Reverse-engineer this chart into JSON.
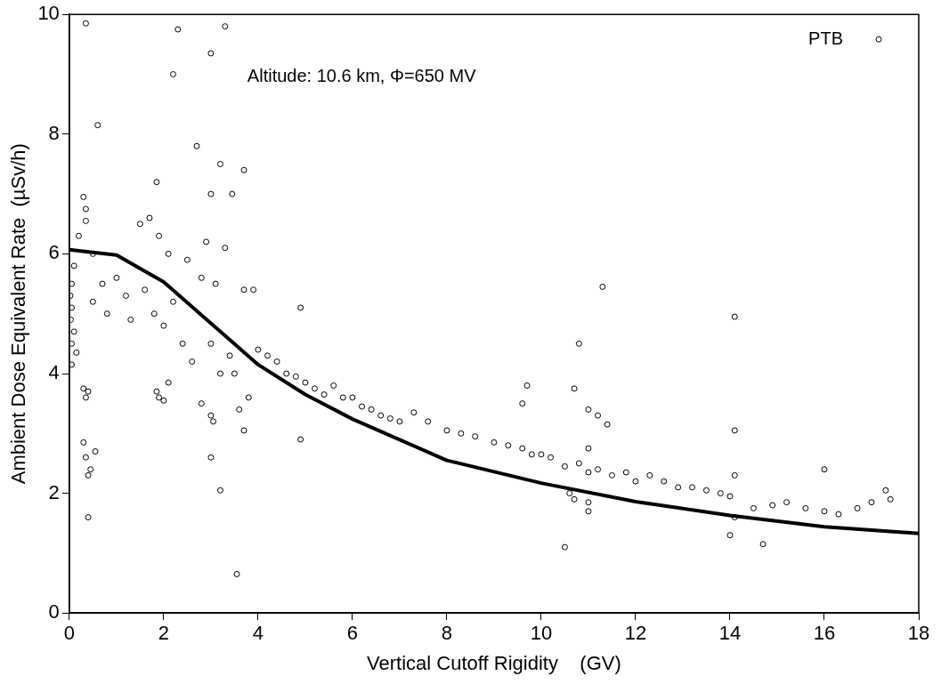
{
  "chart_data": {
    "type": "scatter",
    "xlabel": "Vertical Cutoff Rigidity    (GV)",
    "ylabel": "Ambient Dose Equivalent Rate  (µSv/h)",
    "annotations": [
      "Altitude: 10.6 km, Φ=650 MV"
    ],
    "xlim": [
      0,
      18
    ],
    "xticks": [
      0,
      2,
      4,
      6,
      8,
      10,
      12,
      14,
      16,
      18
    ],
    "ylim": [
      0,
      10
    ],
    "yticks": [
      0,
      2,
      4,
      6,
      8,
      10
    ],
    "grid": false,
    "legend": "top right",
    "series": [
      {
        "name": "PTB",
        "marker": "circle",
        "color": "#000000",
        "x": [
          0.35,
          0.6,
          2.2,
          2.3,
          3.3,
          3.0,
          2.7,
          3.0,
          3.2,
          3.7,
          3.45,
          1.85,
          0.3,
          0.35,
          0.35,
          0.2,
          0.5,
          0.1,
          0.05,
          0.02,
          0.05,
          0.03,
          0.1,
          0.05,
          0.15,
          0.05,
          0.3,
          0.35,
          0.4,
          0.3,
          0.35,
          0.45,
          0.4,
          0.55,
          0.4,
          3.55,
          3.2,
          3.0,
          4.9,
          4.9,
          11.3,
          14.1,
          14.1,
          10.8,
          10.7,
          10.5,
          14.7,
          16.0,
          0.5,
          0.7,
          0.8,
          1.0,
          1.2,
          1.3,
          1.5,
          1.6,
          1.7,
          1.8,
          1.9,
          2.0,
          2.1,
          2.2,
          2.4,
          2.5,
          2.6,
          2.8,
          2.9,
          3.0,
          3.1,
          3.2,
          3.3,
          3.4,
          3.6,
          3.7,
          3.8,
          3.9,
          1.85,
          1.9,
          2.0,
          2.1,
          2.8,
          3.0,
          3.05,
          3.5,
          3.7,
          4.0,
          4.2,
          4.4,
          4.6,
          4.8,
          5.0,
          5.2,
          5.4,
          5.6,
          5.8,
          6.0,
          6.2,
          6.4,
          6.6,
          6.8,
          7.0,
          7.3,
          7.6,
          8.0,
          8.3,
          8.6,
          9.0,
          9.3,
          9.6,
          9.8,
          10.0,
          10.2,
          10.5,
          10.6,
          10.7,
          10.8,
          11.0,
          11.0,
          11.2,
          11.5,
          11.8,
          12.0,
          12.3,
          12.6,
          12.9,
          13.2,
          13.5,
          13.8,
          14.0,
          14.0,
          14.1,
          14.1,
          14.5,
          14.9,
          15.2,
          15.6,
          16.0,
          16.3,
          16.7,
          17.0,
          17.3,
          17.4,
          9.6,
          9.7,
          11.2,
          11.4,
          11.0,
          11.0,
          11.0
        ],
        "values": [
          9.85,
          8.15,
          9.0,
          9.75,
          9.8,
          9.35,
          7.8,
          7.0,
          7.5,
          7.4,
          7.0,
          7.2,
          6.95,
          6.75,
          6.55,
          6.3,
          6.0,
          5.8,
          5.5,
          5.3,
          5.1,
          4.9,
          4.7,
          4.5,
          4.35,
          4.15,
          3.75,
          3.6,
          3.7,
          2.85,
          2.6,
          2.4,
          2.3,
          2.7,
          1.6,
          0.65,
          2.05,
          2.6,
          2.9,
          5.1,
          5.45,
          4.95,
          3.05,
          4.5,
          3.75,
          1.1,
          1.15,
          2.4,
          5.2,
          5.5,
          5.0,
          5.6,
          5.3,
          4.9,
          6.5,
          5.4,
          6.6,
          5.0,
          6.3,
          4.8,
          6.0,
          5.2,
          4.5,
          5.9,
          4.2,
          5.6,
          6.2,
          4.5,
          5.5,
          4.0,
          6.1,
          4.3,
          3.4,
          5.4,
          3.6,
          5.4,
          3.7,
          3.6,
          3.55,
          3.85,
          3.5,
          3.3,
          3.2,
          4.0,
          3.05,
          4.4,
          4.3,
          4.2,
          4.0,
          3.95,
          3.85,
          3.75,
          3.65,
          3.8,
          3.6,
          3.6,
          3.45,
          3.4,
          3.3,
          3.25,
          3.2,
          3.35,
          3.2,
          3.05,
          3.0,
          2.95,
          2.85,
          2.8,
          2.75,
          2.65,
          2.65,
          2.6,
          2.45,
          2.0,
          1.9,
          2.5,
          2.35,
          1.7,
          2.4,
          2.3,
          2.35,
          2.2,
          2.3,
          2.2,
          2.1,
          2.1,
          2.05,
          2.0,
          1.95,
          1.3,
          1.6,
          2.3,
          1.75,
          1.8,
          1.85,
          1.75,
          1.7,
          1.65,
          1.75,
          1.85,
          2.05,
          1.9,
          3.5,
          3.8,
          3.3,
          3.15,
          3.4,
          2.75,
          1.85
        ]
      },
      {
        "type": "line",
        "marker": "none",
        "color": "#000000",
        "x": [
          0,
          1,
          2,
          3,
          4,
          5,
          6,
          8,
          10,
          12,
          14,
          16,
          18
        ],
        "values": [
          6.07,
          5.98,
          5.53,
          4.84,
          4.15,
          3.65,
          3.24,
          2.55,
          2.17,
          1.86,
          1.63,
          1.44,
          1.33
        ]
      }
    ]
  }
}
